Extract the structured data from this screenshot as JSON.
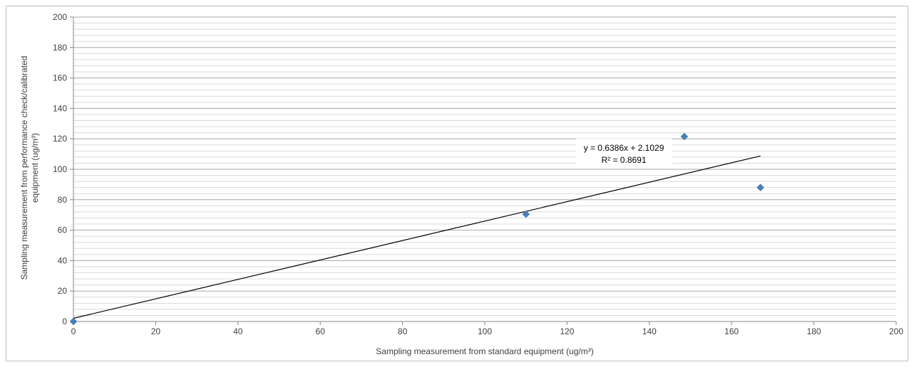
{
  "chart_data": {
    "type": "scatter",
    "title": "",
    "xlabel": "Sampling measurement from standard equipment  (ug/m³)",
    "ylabel_line1": "Sampling measurement from performance check/calibrated",
    "ylabel_line2": "equipment (ug/m³)",
    "xlim": [
      0,
      200
    ],
    "ylim": [
      0,
      200
    ],
    "x_ticks": [
      0,
      20,
      40,
      60,
      80,
      100,
      120,
      140,
      160,
      180,
      200
    ],
    "y_ticks": [
      0,
      20,
      40,
      60,
      80,
      100,
      120,
      140,
      160,
      180,
      200
    ],
    "grid": true,
    "legend": "none",
    "series": [
      {
        "points": [
          {
            "x": 0,
            "y": 0
          },
          {
            "x": 110,
            "y": 70.5
          },
          {
            "x": 148.5,
            "y": 121.5
          },
          {
            "x": 167,
            "y": 88
          }
        ],
        "marker": "diamond",
        "color": "#4a7ebb"
      }
    ],
    "trendline": {
      "slope": 0.6386,
      "intercept": 2.1029,
      "x_range": [
        0,
        167
      ],
      "equation": "y = 0.6386x + 2.1029",
      "r_squared": "R² = 0.8691",
      "color": "#000000"
    }
  }
}
